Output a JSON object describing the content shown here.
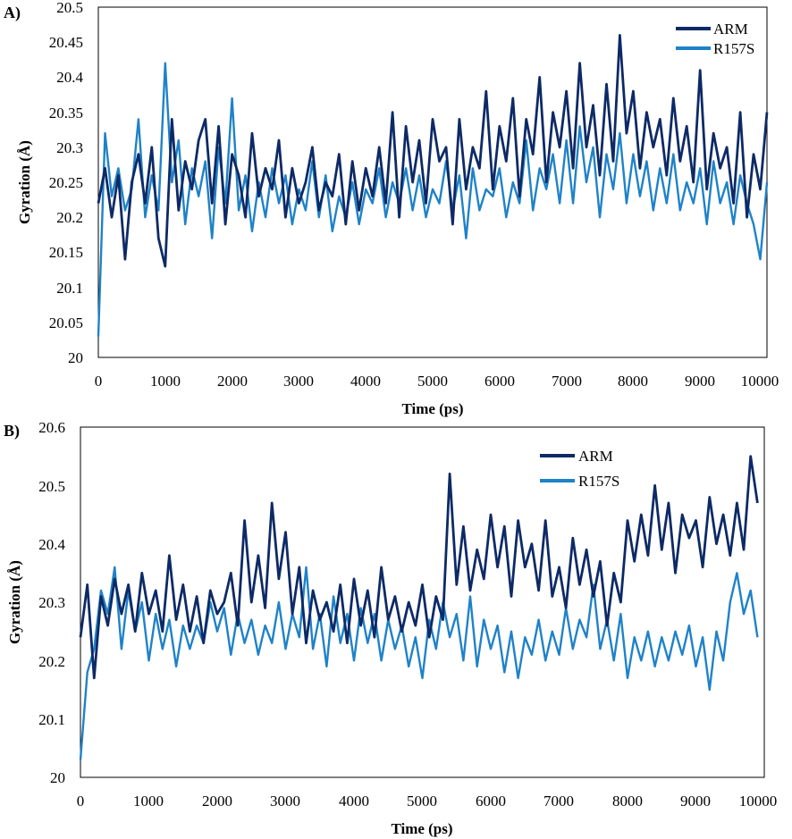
{
  "chart_data": [
    {
      "panel_label": "A)",
      "type": "line",
      "xlabel": "Time (ps)",
      "ylabel": "Gyration (Å)",
      "xlim": [
        0,
        10000
      ],
      "ylim": [
        20,
        20.5
      ],
      "x_ticks": [
        "0",
        "1000",
        "2000",
        "3000",
        "4000",
        "5000",
        "6000",
        "7000",
        "8000",
        "9000",
        "10000"
      ],
      "y_ticks": [
        "20",
        "20.05",
        "20.1",
        "20.15",
        "20.2",
        "20.25",
        "20.3",
        "20.35",
        "20.4",
        "20.45",
        "20.5"
      ],
      "legend_position": "top-right",
      "x": [
        0,
        100,
        200,
        300,
        400,
        500,
        600,
        700,
        800,
        900,
        1000,
        1100,
        1200,
        1300,
        1400,
        1500,
        1600,
        1700,
        1800,
        1900,
        2000,
        2100,
        2200,
        2300,
        2400,
        2500,
        2600,
        2700,
        2800,
        2900,
        3000,
        3100,
        3200,
        3300,
        3400,
        3500,
        3600,
        3700,
        3800,
        3900,
        4000,
        4100,
        4200,
        4300,
        4400,
        4500,
        4600,
        4700,
        4800,
        4900,
        5000,
        5100,
        5200,
        5300,
        5400,
        5500,
        5600,
        5700,
        5800,
        5900,
        6000,
        6100,
        6200,
        6300,
        6400,
        6500,
        6600,
        6700,
        6800,
        6900,
        7000,
        7100,
        7200,
        7300,
        7400,
        7500,
        7600,
        7700,
        7800,
        7900,
        8000,
        8100,
        8200,
        8300,
        8400,
        8500,
        8600,
        8700,
        8800,
        8900,
        9000,
        9100,
        9200,
        9300,
        9400,
        9500,
        9600,
        9700,
        9800,
        9900,
        10000
      ],
      "series": [
        {
          "name": "ARM",
          "color": "#0d2a66",
          "values": [
            20.22,
            20.27,
            20.2,
            20.26,
            20.14,
            20.25,
            20.29,
            20.22,
            20.3,
            20.17,
            20.13,
            20.34,
            20.21,
            20.28,
            20.24,
            20.31,
            20.34,
            20.22,
            20.33,
            20.19,
            20.29,
            20.26,
            20.2,
            20.32,
            20.23,
            20.27,
            20.24,
            20.31,
            20.2,
            20.27,
            20.22,
            20.25,
            20.3,
            20.21,
            20.25,
            20.23,
            20.29,
            20.19,
            20.28,
            20.21,
            20.27,
            20.23,
            20.3,
            20.22,
            20.35,
            20.2,
            20.33,
            20.25,
            20.31,
            20.22,
            20.34,
            20.28,
            20.3,
            20.19,
            20.34,
            20.24,
            20.3,
            20.27,
            20.38,
            20.24,
            20.33,
            20.28,
            20.37,
            20.23,
            20.34,
            20.29,
            20.4,
            20.25,
            20.35,
            20.3,
            20.38,
            20.27,
            20.42,
            20.3,
            20.36,
            20.26,
            20.39,
            20.28,
            20.46,
            20.32,
            20.38,
            20.27,
            20.35,
            20.3,
            20.34,
            20.26,
            20.37,
            20.28,
            20.33,
            20.25,
            20.41,
            20.24,
            20.32,
            20.27,
            20.3,
            20.22,
            20.35,
            20.2,
            20.29,
            20.24,
            20.35
          ]
        },
        {
          "name": "R157S",
          "color": "#1f82c8",
          "values": [
            20.03,
            20.32,
            20.23,
            20.27,
            20.21,
            20.24,
            20.34,
            20.2,
            20.26,
            20.21,
            20.42,
            20.25,
            20.31,
            20.19,
            20.27,
            20.23,
            20.28,
            20.17,
            20.3,
            20.22,
            20.37,
            20.21,
            20.26,
            20.18,
            20.25,
            20.2,
            20.27,
            20.22,
            20.26,
            20.19,
            20.24,
            20.21,
            20.28,
            20.2,
            20.26,
            20.18,
            20.23,
            20.2,
            20.25,
            20.19,
            20.24,
            20.22,
            20.27,
            20.2,
            20.25,
            20.22,
            20.27,
            20.21,
            20.26,
            20.2,
            20.24,
            20.22,
            20.28,
            20.21,
            20.26,
            20.17,
            20.27,
            20.21,
            20.24,
            20.23,
            20.27,
            20.2,
            20.25,
            20.22,
            20.31,
            20.21,
            20.27,
            20.24,
            20.29,
            20.22,
            20.31,
            20.22,
            20.33,
            20.25,
            20.3,
            20.2,
            20.29,
            20.24,
            20.32,
            20.22,
            20.29,
            20.23,
            20.28,
            20.21,
            20.27,
            20.22,
            20.29,
            20.21,
            20.25,
            20.22,
            20.27,
            20.19,
            20.28,
            20.22,
            20.25,
            20.19,
            20.26,
            20.22,
            20.19,
            20.14,
            20.25
          ]
        }
      ]
    },
    {
      "panel_label": "B)",
      "type": "line",
      "xlabel": "Time (ps)",
      "ylabel": "Gyration (Å)",
      "xlim": [
        0,
        10000
      ],
      "ylim": [
        20,
        20.6
      ],
      "x_ticks": [
        "0",
        "1000",
        "2000",
        "3000",
        "4000",
        "5000",
        "6000",
        "7000",
        "8000",
        "9000",
        "10000"
      ],
      "y_ticks": [
        "20",
        "20.1",
        "20.2",
        "20.3",
        "20.4",
        "20.5",
        "20.6"
      ],
      "legend_position": "top-right",
      "x": [
        0,
        100,
        200,
        300,
        400,
        500,
        600,
        700,
        800,
        900,
        1000,
        1100,
        1200,
        1300,
        1400,
        1500,
        1600,
        1700,
        1800,
        1900,
        2000,
        2100,
        2200,
        2300,
        2400,
        2500,
        2600,
        2700,
        2800,
        2900,
        3000,
        3100,
        3200,
        3300,
        3400,
        3500,
        3600,
        3700,
        3800,
        3900,
        4000,
        4100,
        4200,
        4300,
        4400,
        4500,
        4600,
        4700,
        4800,
        4900,
        5000,
        5100,
        5200,
        5300,
        5400,
        5500,
        5600,
        5700,
        5800,
        5900,
        6000,
        6100,
        6200,
        6300,
        6400,
        6500,
        6600,
        6700,
        6800,
        6900,
        7000,
        7100,
        7200,
        7300,
        7400,
        7500,
        7600,
        7700,
        7800,
        7900,
        8000,
        8100,
        8200,
        8300,
        8400,
        8500,
        8600,
        8700,
        8800,
        8900,
        9000,
        9100,
        9200,
        9300,
        9400,
        9500,
        9600,
        9700,
        9800,
        9900
      ],
      "series": [
        {
          "name": "ARM",
          "color": "#0d2a66",
          "values": [
            20.24,
            20.33,
            20.17,
            20.31,
            20.26,
            20.34,
            20.28,
            20.33,
            20.25,
            20.35,
            20.28,
            20.32,
            20.25,
            20.38,
            20.27,
            20.33,
            20.25,
            20.31,
            20.23,
            20.32,
            20.28,
            20.3,
            20.35,
            20.26,
            20.44,
            20.3,
            20.38,
            20.29,
            20.47,
            20.34,
            20.42,
            20.28,
            20.36,
            20.23,
            20.32,
            20.27,
            20.3,
            20.25,
            20.33,
            20.23,
            20.34,
            20.26,
            20.32,
            20.24,
            20.36,
            20.27,
            20.31,
            20.25,
            20.3,
            20.26,
            20.33,
            20.24,
            20.31,
            20.27,
            20.52,
            20.33,
            20.43,
            20.32,
            20.39,
            20.34,
            20.45,
            20.36,
            20.43,
            20.31,
            20.44,
            20.36,
            20.4,
            20.32,
            20.44,
            20.31,
            20.36,
            20.29,
            20.41,
            20.33,
            20.39,
            20.31,
            20.37,
            20.26,
            20.35,
            20.3,
            20.44,
            20.37,
            20.45,
            20.38,
            20.5,
            20.39,
            20.47,
            20.35,
            20.45,
            20.41,
            20.44,
            20.36,
            20.48,
            20.4,
            20.45,
            20.38,
            20.47,
            20.39,
            20.55,
            20.47
          ]
        },
        {
          "name": "R157S",
          "color": "#1f82c8",
          "values": [
            20.03,
            20.18,
            20.22,
            20.32,
            20.28,
            20.36,
            20.22,
            20.32,
            20.25,
            20.3,
            20.2,
            20.28,
            20.22,
            20.27,
            20.19,
            20.26,
            20.22,
            20.26,
            20.23,
            20.3,
            20.25,
            20.29,
            20.21,
            20.28,
            20.23,
            20.27,
            20.21,
            20.26,
            20.23,
            20.3,
            20.22,
            20.28,
            20.24,
            20.36,
            20.22,
            20.28,
            20.19,
            20.31,
            20.23,
            20.28,
            20.2,
            20.29,
            20.23,
            20.28,
            20.2,
            20.27,
            20.22,
            20.26,
            20.19,
            20.24,
            20.17,
            20.27,
            20.22,
            20.3,
            20.24,
            20.28,
            20.2,
            20.31,
            20.19,
            20.27,
            20.22,
            20.26,
            20.18,
            20.25,
            20.17,
            20.24,
            20.21,
            20.27,
            20.2,
            20.25,
            20.21,
            20.29,
            20.22,
            20.27,
            20.24,
            20.33,
            20.22,
            20.27,
            20.2,
            20.28,
            20.17,
            20.24,
            20.2,
            20.25,
            20.19,
            20.24,
            20.2,
            20.25,
            20.21,
            20.26,
            20.19,
            20.24,
            20.15,
            20.25,
            20.2,
            20.3,
            20.35,
            20.28,
            20.32,
            20.24
          ]
        }
      ]
    }
  ]
}
